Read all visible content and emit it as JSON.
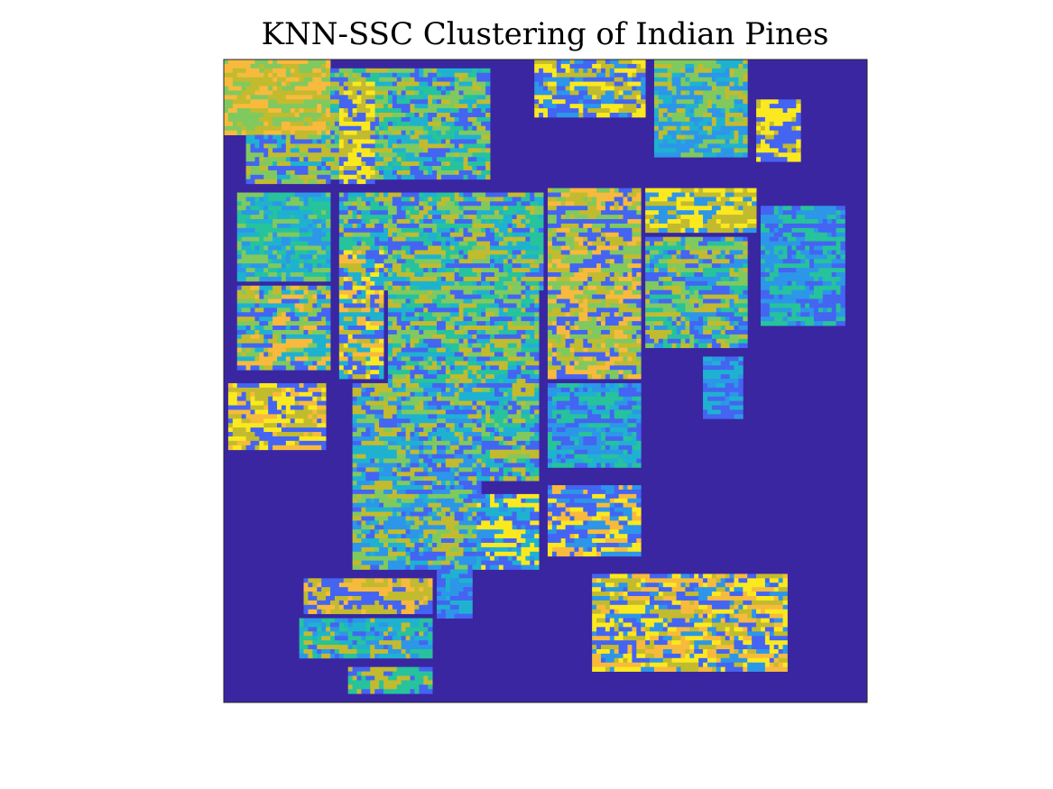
{
  "chart_data": {
    "type": "heatmap",
    "title": "KNN-SSC Clustering of Indian Pines",
    "xlabel": "",
    "ylabel": "",
    "grid": false,
    "axis_ticks": false,
    "dimensions": {
      "rows": 145,
      "cols": 145
    },
    "colormap": [
      "#3a26a1",
      "#4464f2",
      "#2d96e8",
      "#1fb2d0",
      "#26c39c",
      "#80c95f",
      "#c2bb2f",
      "#f8ba3d",
      "#fbe91f"
    ],
    "background_class": 0,
    "regions": [
      {
        "name": "field-top-left",
        "row": [
          0,
          17
        ],
        "col": [
          0,
          24
        ],
        "classes": [
          5,
          6,
          7
        ]
      },
      {
        "name": "field-top-strip",
        "row": [
          2,
          27
        ],
        "col": [
          24,
          60
        ],
        "classes": [
          1,
          3,
          4,
          5,
          6
        ]
      },
      {
        "name": "field-top-mid-left",
        "row": [
          17,
          28
        ],
        "col": [
          5,
          24
        ],
        "classes": [
          1,
          3,
          5,
          6
        ]
      },
      {
        "name": "field-top-pair",
        "row": [
          5,
          28
        ],
        "col": [
          26,
          34
        ],
        "classes": [
          1,
          6,
          8
        ]
      },
      {
        "name": "field-top-center",
        "row": [
          0,
          13
        ],
        "col": [
          70,
          95
        ],
        "classes": [
          1,
          2,
          6,
          8
        ]
      },
      {
        "name": "field-top-right",
        "row": [
          0,
          22
        ],
        "col": [
          97,
          118
        ],
        "classes": [
          2,
          3,
          5,
          6
        ]
      },
      {
        "name": "field-small-top-right",
        "row": [
          9,
          23
        ],
        "col": [
          120,
          130
        ],
        "classes": [
          1,
          6,
          8
        ]
      },
      {
        "name": "field-left-upper",
        "row": [
          30,
          50
        ],
        "col": [
          3,
          24
        ],
        "classes": [
          2,
          3,
          4,
          5
        ]
      },
      {
        "name": "field-mid-upper",
        "row": [
          30,
          52
        ],
        "col": [
          26,
          72
        ],
        "classes": [
          1,
          3,
          4,
          5,
          6
        ]
      },
      {
        "name": "field-center-tall",
        "row": [
          29,
          72
        ],
        "col": [
          73,
          94
        ],
        "classes": [
          1,
          5,
          6,
          7
        ]
      },
      {
        "name": "field-center-right-top",
        "row": [
          29,
          39
        ],
        "col": [
          95,
          120
        ],
        "classes": [
          2,
          6,
          8
        ]
      },
      {
        "name": "field-center-right-strips",
        "row": [
          40,
          65
        ],
        "col": [
          95,
          118
        ],
        "classes": [
          1,
          2,
          4,
          5,
          6
        ]
      },
      {
        "name": "field-right-mid",
        "row": [
          33,
          60
        ],
        "col": [
          121,
          140
        ],
        "classes": [
          1,
          2,
          4
        ]
      },
      {
        "name": "field-left-mid",
        "row": [
          51,
          70
        ],
        "col": [
          3,
          24
        ],
        "classes": [
          1,
          3,
          5,
          6,
          7
        ]
      },
      {
        "name": "field-diag-left",
        "row": [
          43,
          72
        ],
        "col": [
          26,
          36
        ],
        "classes": [
          1,
          3,
          6,
          7,
          8
        ]
      },
      {
        "name": "field-diag-band",
        "row": [
          46,
          95
        ],
        "col": [
          37,
          71
        ],
        "classes": [
          1,
          3,
          4,
          5,
          6
        ]
      },
      {
        "name": "field-left-low",
        "row": [
          73,
          88
        ],
        "col": [
          1,
          23
        ],
        "classes": [
          1,
          6,
          7,
          8
        ]
      },
      {
        "name": "field-mid-low",
        "row": [
          73,
          115
        ],
        "col": [
          29,
          58
        ],
        "classes": [
          1,
          2,
          3,
          5,
          6
        ]
      },
      {
        "name": "field-center-low",
        "row": [
          73,
          92
        ],
        "col": [
          73,
          94
        ],
        "classes": [
          1,
          2,
          3,
          4
        ]
      },
      {
        "name": "field-small-right-low",
        "row": [
          67,
          81
        ],
        "col": [
          108,
          117
        ],
        "classes": [
          1,
          2,
          3
        ]
      },
      {
        "name": "field-center-square",
        "row": [
          98,
          115
        ],
        "col": [
          57,
          71
        ],
        "classes": [
          1,
          2,
          3,
          8
        ]
      },
      {
        "name": "field-center-bottom-small",
        "row": [
          96,
          112
        ],
        "col": [
          73,
          94
        ],
        "classes": [
          1,
          2,
          7,
          8
        ]
      },
      {
        "name": "field-bottom-left-top",
        "row": [
          117,
          125
        ],
        "col": [
          18,
          47
        ],
        "classes": [
          1,
          6,
          7
        ]
      },
      {
        "name": "field-bottom-left",
        "row": [
          126,
          135
        ],
        "col": [
          17,
          47
        ],
        "classes": [
          1,
          2,
          3,
          4,
          6
        ]
      },
      {
        "name": "field-bottom-left-small",
        "row": [
          115,
          126
        ],
        "col": [
          48,
          56
        ],
        "classes": [
          1,
          2,
          3
        ]
      },
      {
        "name": "field-bottom-strip",
        "row": [
          137,
          143
        ],
        "col": [
          28,
          47
        ],
        "classes": [
          1,
          4,
          6
        ]
      },
      {
        "name": "field-bottom-right",
        "row": [
          116,
          138
        ],
        "col": [
          83,
          127
        ],
        "classes": [
          1,
          2,
          6,
          7,
          8
        ]
      }
    ]
  }
}
